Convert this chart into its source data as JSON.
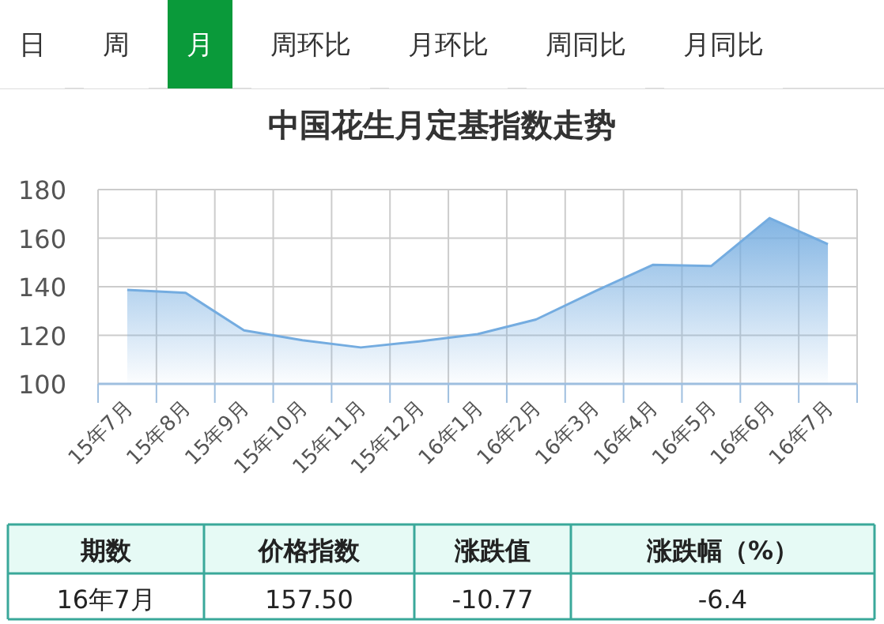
{
  "chart_data": [
    {
      "type": "other",
      "categories": [
        "日",
        "周",
        "月",
        "周环比",
        "月环比",
        "周同比",
        "月同比"
      ],
      "colors": [
        "#ffffff",
        "#ffffff",
        "#0a9a3a",
        "#ffffff",
        "#ffffff",
        "#ffffff",
        "#ffffff"
      ]
    },
    {
      "type": "area",
      "title": "中国花生月定基指数走势",
      "categories": [
        "15年7月",
        "15年8月",
        "15年9月",
        "15年10月",
        "15年11月",
        "15年12月",
        "16年1月",
        "16年2月",
        "16年3月",
        "16年4月",
        "16年5月",
        "16年6月",
        "16年7月"
      ],
      "series": [
        {
          "color": "#74ace0",
          "values": [
            138.7,
            137.5,
            122,
            118,
            115,
            117.5,
            120.5,
            126.5,
            138,
            149,
            148.5,
            168.27,
            157.5
          ]
        }
      ],
      "ylim": [
        100,
        180
      ],
      "yticks": [
        100,
        120,
        140,
        160,
        180
      ],
      "grid": true
    },
    {
      "type": "other",
      "annotations": [
        "期数",
        "价格指数",
        "涨跌值",
        "涨跌幅（%）",
        "16年7月",
        "157.50",
        "-10.77",
        "-6.4"
      ]
    }
  ]
}
